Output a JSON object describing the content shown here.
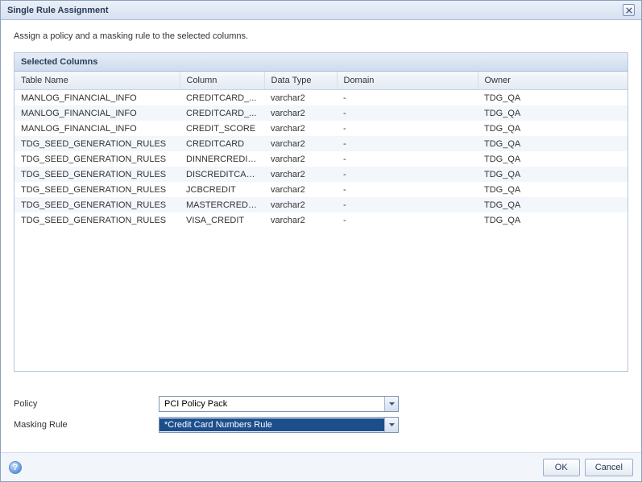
{
  "dialog": {
    "title": "Single Rule Assignment",
    "instruction": "Assign a policy and a masking rule to the selected columns."
  },
  "panel": {
    "title": "Selected Columns"
  },
  "table": {
    "columns": [
      "Table Name",
      "Column",
      "Data Type",
      "Domain",
      "Owner"
    ],
    "rows": [
      [
        "MANLOG_FINANCIAL_INFO",
        "CREDITCARD_...",
        "varchar2",
        "-",
        "TDG_QA"
      ],
      [
        "MANLOG_FINANCIAL_INFO",
        "CREDITCARD_...",
        "varchar2",
        "-",
        "TDG_QA"
      ],
      [
        "MANLOG_FINANCIAL_INFO",
        "CREDIT_SCORE",
        "varchar2",
        "-",
        "TDG_QA"
      ],
      [
        "TDG_SEED_GENERATION_RULES",
        "CREDITCARD",
        "varchar2",
        "-",
        "TDG_QA"
      ],
      [
        "TDG_SEED_GENERATION_RULES",
        "DINNERCREDIT...",
        "varchar2",
        "-",
        "TDG_QA"
      ],
      [
        "TDG_SEED_GENERATION_RULES",
        "DISCREDITCARD",
        "varchar2",
        "-",
        "TDG_QA"
      ],
      [
        "TDG_SEED_GENERATION_RULES",
        "JCBCREDIT",
        "varchar2",
        "-",
        "TDG_QA"
      ],
      [
        "TDG_SEED_GENERATION_RULES",
        "MASTERCREDI...",
        "varchar2",
        "-",
        "TDG_QA"
      ],
      [
        "TDG_SEED_GENERATION_RULES",
        "VISA_CREDIT",
        "varchar2",
        "-",
        "TDG_QA"
      ]
    ]
  },
  "form": {
    "policy_label": "Policy",
    "policy_value": "PCI Policy Pack",
    "rule_label": "Masking Rule",
    "rule_value": "*Credit Card Numbers Rule"
  },
  "buttons": {
    "ok": "OK",
    "cancel": "Cancel"
  },
  "help_glyph": "?"
}
